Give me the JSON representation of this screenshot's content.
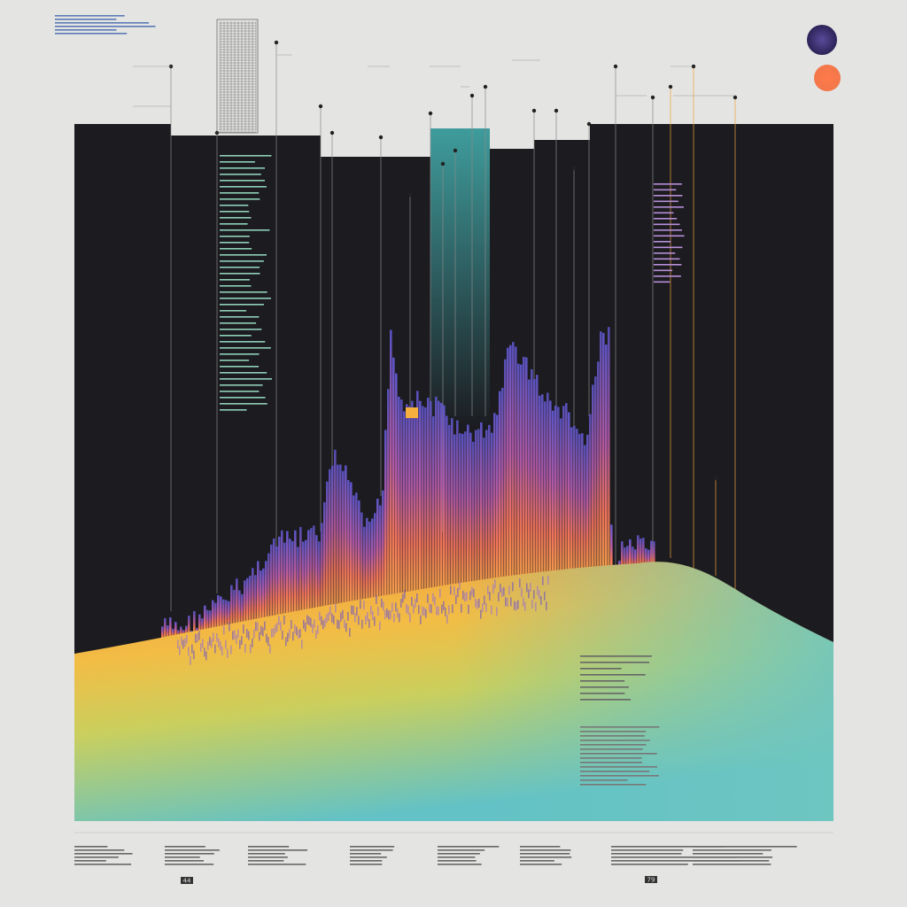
{
  "footer": {
    "left": "44",
    "right": "79"
  }
}
